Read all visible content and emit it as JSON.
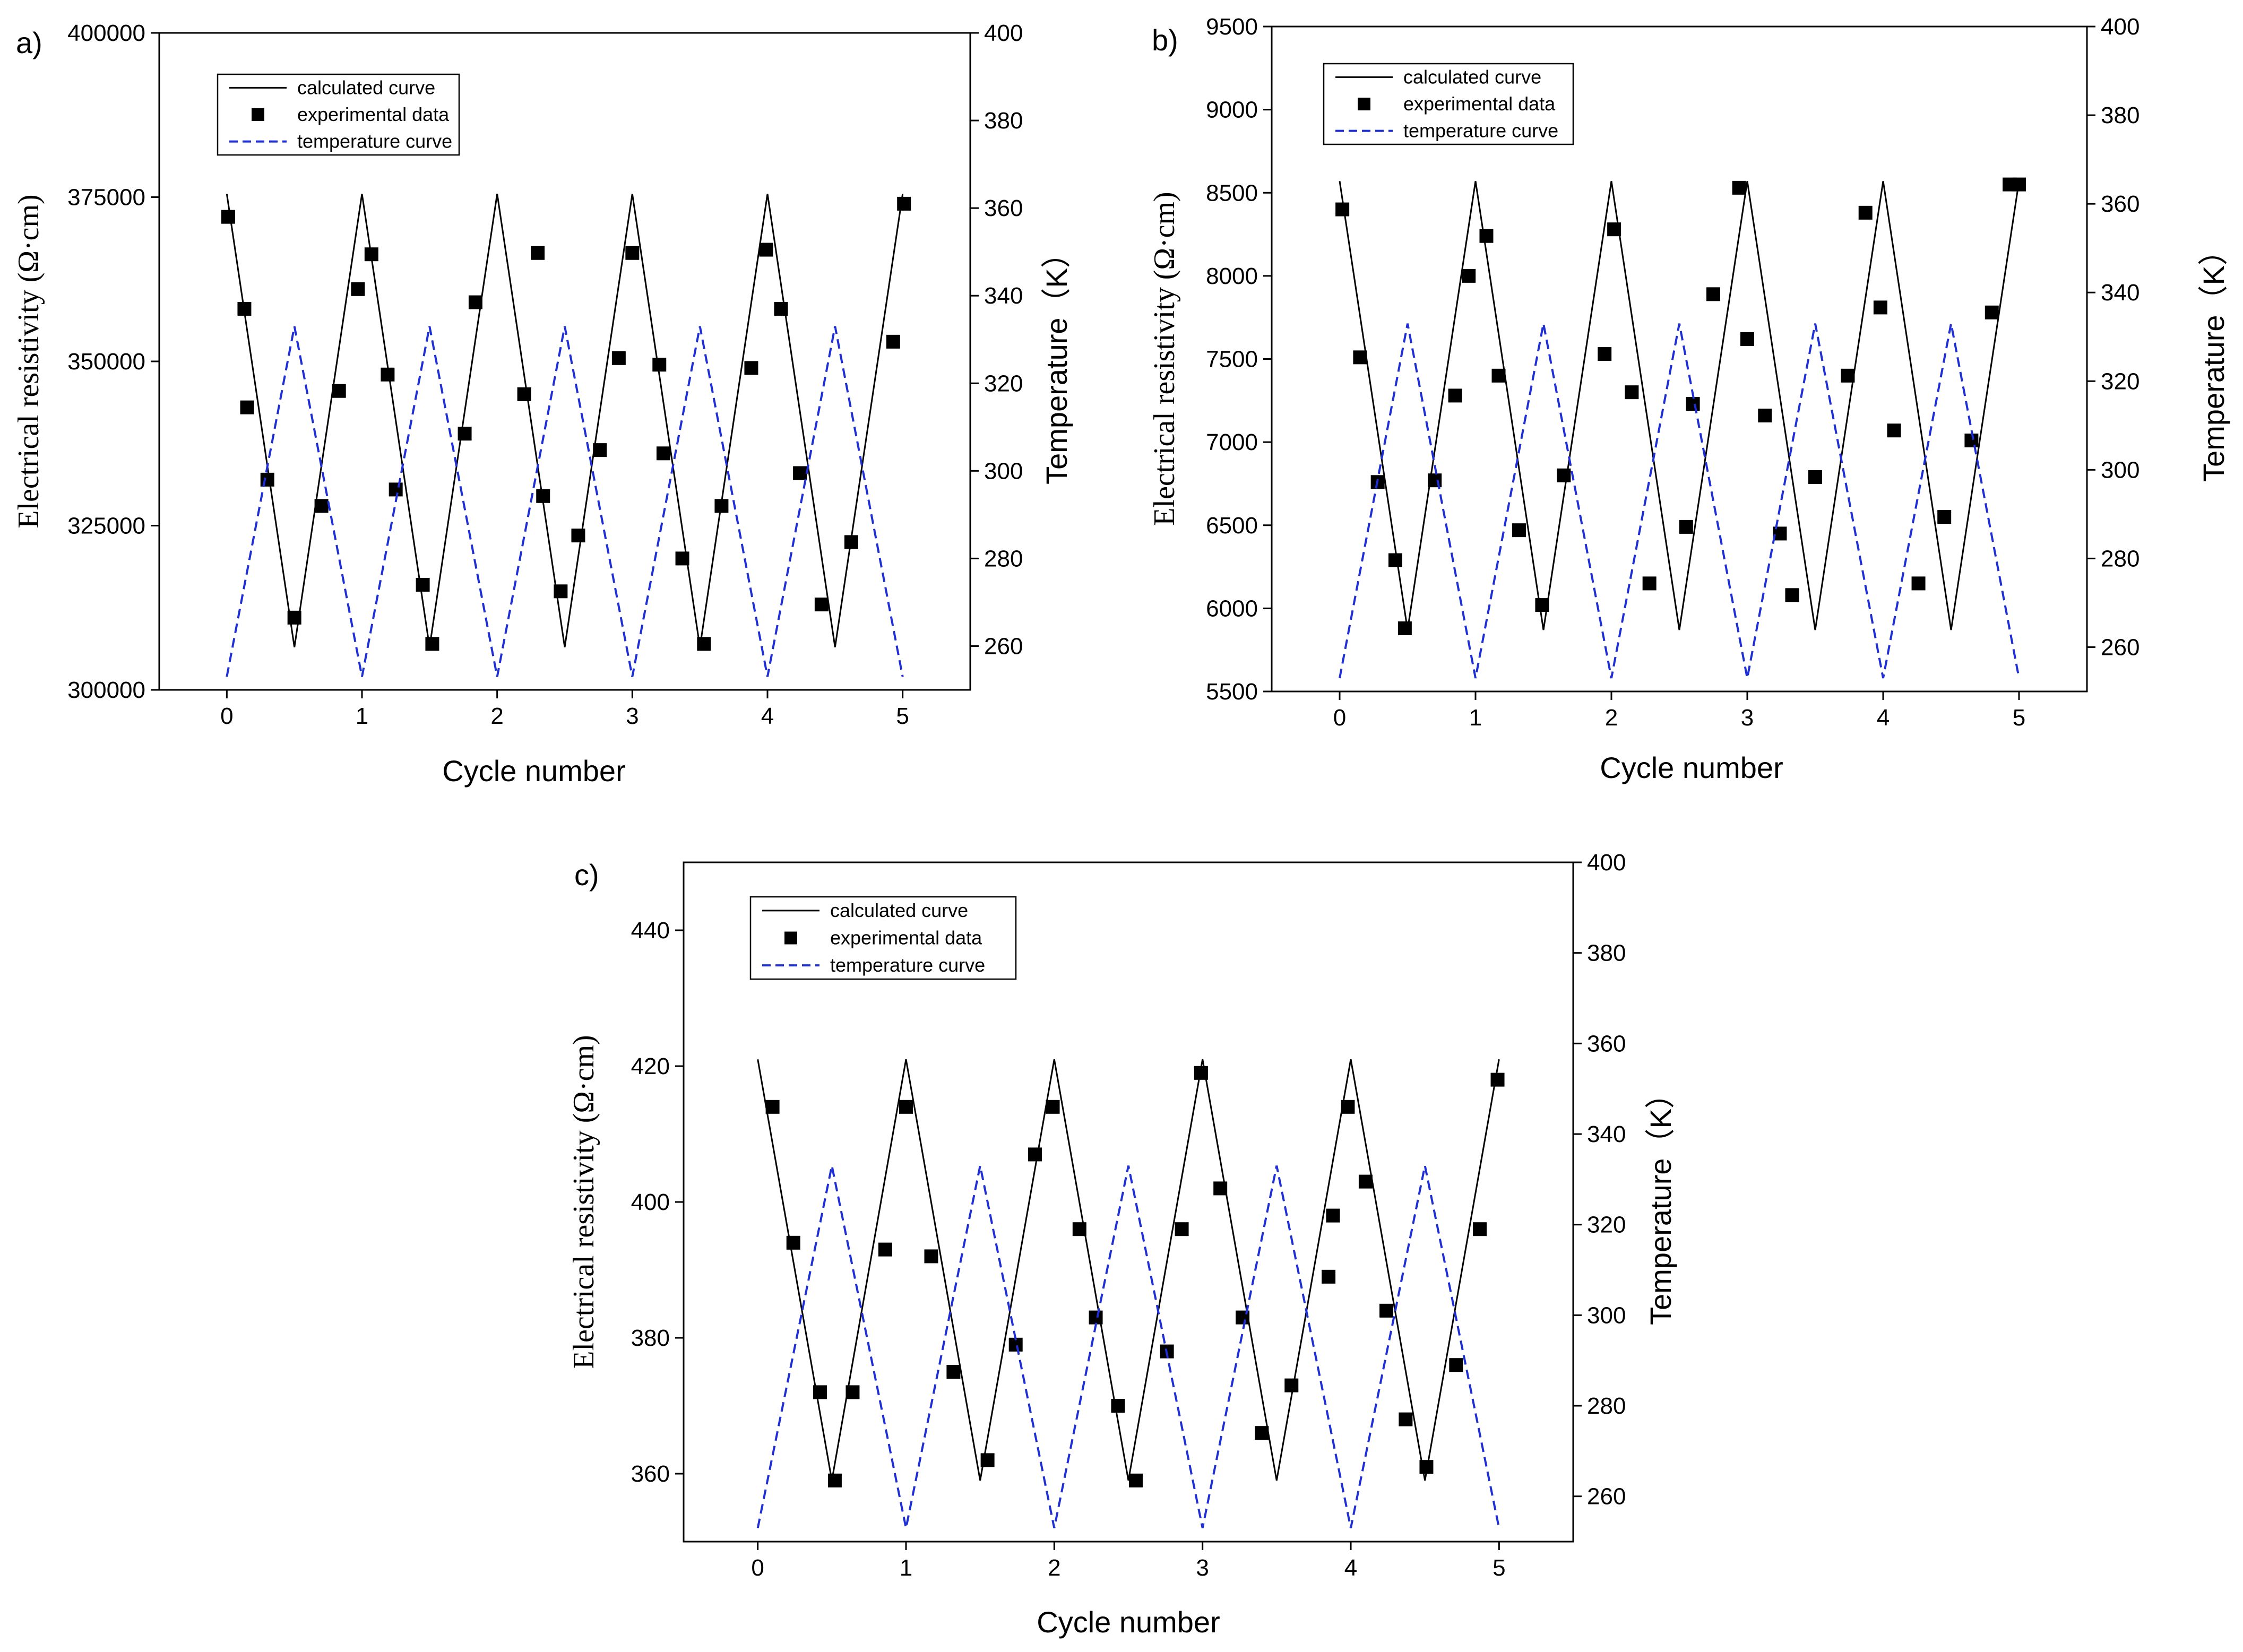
{
  "chart_data": [
    {
      "type": "line",
      "panel_label": "a)",
      "xlabel": "Cycle number",
      "ylabel": "Electrical resistivity (Ω·cm)",
      "y2label": "Temperature（K）",
      "xlim": [
        -0.5,
        5.5
      ],
      "ylim": [
        300000,
        400000
      ],
      "y2lim": [
        250,
        400
      ],
      "xticks": [
        0,
        1,
        2,
        3,
        4,
        5
      ],
      "yticks": [
        300000,
        325000,
        350000,
        375000,
        400000
      ],
      "y2ticks": [
        260,
        280,
        300,
        320,
        340,
        360,
        380,
        400
      ],
      "legend": {
        "position": "top-left",
        "entries": [
          "calculated curve",
          "experimental data",
          "temperature curve"
        ]
      },
      "series": [
        {
          "name": "calculated curve",
          "axis": "left",
          "style": "line",
          "color": "#000000",
          "x": [
            0,
            0.5,
            1,
            1.5,
            2,
            2.5,
            3,
            3.5,
            4,
            4.5,
            5
          ],
          "y": [
            375500,
            306500,
            375500,
            306500,
            375500,
            306500,
            375500,
            306500,
            375500,
            306500,
            375500
          ]
        },
        {
          "name": "experimental data",
          "axis": "left",
          "style": "markers",
          "color": "#000000",
          "x": [
            0.01,
            0.13,
            0.15,
            0.3,
            0.5,
            0.7,
            0.83,
            0.97,
            1.07,
            1.19,
            1.25,
            1.45,
            1.52,
            1.76,
            1.84,
            2.2,
            2.3,
            2.34,
            2.47,
            2.6,
            2.76,
            2.9,
            3.0,
            3.2,
            3.23,
            3.37,
            3.53,
            3.66,
            3.88,
            3.99,
            4.1,
            4.24,
            4.4,
            4.62,
            4.93,
            5.01
          ],
          "y": [
            372000,
            358000,
            343000,
            332000,
            311000,
            328000,
            345500,
            361000,
            366300,
            348000,
            330500,
            316000,
            307000,
            339000,
            359000,
            345000,
            366500,
            329500,
            315000,
            323500,
            336500,
            350500,
            366500,
            349500,
            336000,
            320000,
            307000,
            328000,
            349000,
            367000,
            358000,
            333000,
            313000,
            322500,
            353000,
            374000
          ]
        },
        {
          "name": "temperature curve",
          "axis": "right",
          "style": "dashed",
          "color": "#1f2fd6",
          "x": [
            0,
            0.5,
            1,
            1.5,
            2,
            2.5,
            3,
            3.5,
            4,
            4.5,
            5
          ],
          "y": [
            253,
            333,
            253,
            333,
            253,
            333,
            253,
            333,
            253,
            333,
            253
          ]
        }
      ]
    },
    {
      "type": "line",
      "panel_label": "b)",
      "xlabel": "Cycle number",
      "ylabel": "Electrical resistivity (Ω·cm)",
      "y2label": "Temperature（K）",
      "xlim": [
        -0.5,
        5.5
      ],
      "ylim": [
        5500,
        9500
      ],
      "y2lim": [
        250,
        400
      ],
      "xticks": [
        0,
        1,
        2,
        3,
        4,
        5
      ],
      "yticks": [
        5500,
        6000,
        6500,
        7000,
        7500,
        8000,
        8500,
        9000,
        9500
      ],
      "y2ticks": [
        260,
        280,
        300,
        320,
        340,
        360,
        380,
        400
      ],
      "legend": {
        "position": "top-left",
        "entries": [
          "calculated curve",
          "experimental data",
          "temperature curve"
        ]
      },
      "series": [
        {
          "name": "calculated curve",
          "axis": "left",
          "style": "line",
          "color": "#000000",
          "x": [
            0,
            0.5,
            1,
            1.5,
            2,
            2.5,
            3,
            3.5,
            4,
            4.5,
            5
          ],
          "y": [
            8570,
            5870,
            8570,
            5870,
            8570,
            5870,
            8570,
            5870,
            8570,
            5870,
            8570
          ]
        },
        {
          "name": "experimental data",
          "axis": "left",
          "style": "markers",
          "color": "#000000",
          "x": [
            0.02,
            0.15,
            0.28,
            0.41,
            0.48,
            0.7,
            0.85,
            0.95,
            1.08,
            1.17,
            1.32,
            1.49,
            1.65,
            1.95,
            2.02,
            2.15,
            2.28,
            2.55,
            2.6,
            2.75,
            2.94,
            3.0,
            3.13,
            3.24,
            3.33,
            3.5,
            3.74,
            3.87,
            3.98,
            4.08,
            4.26,
            4.45,
            4.65,
            4.8,
            4.93,
            5.0
          ],
          "y": [
            8400,
            7510,
            6760,
            6290,
            5880,
            6770,
            7280,
            8000,
            8240,
            7400,
            6470,
            6020,
            6800,
            7530,
            8280,
            7300,
            6150,
            6490,
            7230,
            7890,
            8530,
            7620,
            7160,
            6450,
            6080,
            6790,
            7400,
            8380,
            7810,
            7070,
            6150,
            6550,
            7010,
            7780,
            8550,
            8550
          ]
        },
        {
          "name": "temperature curve",
          "axis": "right",
          "style": "dashed",
          "color": "#1f2fd6",
          "x": [
            0,
            0.5,
            1,
            1.5,
            2,
            2.5,
            3,
            3.5,
            4,
            4.5,
            5
          ],
          "y": [
            253,
            333,
            253,
            333,
            253,
            333,
            253,
            333,
            253,
            333,
            253
          ]
        }
      ]
    },
    {
      "type": "line",
      "panel_label": "c)",
      "xlabel": "Cycle number",
      "ylabel": "Electrical resistivity (Ω·cm)",
      "y2label": "Temperature（K）",
      "xlim": [
        -0.5,
        5.5
      ],
      "ylim": [
        350,
        450
      ],
      "y2lim": [
        250,
        400
      ],
      "xticks": [
        0,
        1,
        2,
        3,
        4,
        5
      ],
      "yticks": [
        360,
        380,
        400,
        420,
        440
      ],
      "y2ticks": [
        260,
        280,
        300,
        320,
        340,
        360,
        380,
        400
      ],
      "legend": {
        "position": "top-left",
        "entries": [
          "calculated curve",
          "experimental data",
          "temperature curve"
        ]
      },
      "series": [
        {
          "name": "calculated curve",
          "axis": "left",
          "style": "line",
          "color": "#000000",
          "x": [
            0,
            0.5,
            1,
            1.5,
            2,
            2.5,
            3,
            3.5,
            4,
            4.5,
            5
          ],
          "y": [
            421,
            359,
            421,
            359,
            421,
            359,
            421,
            359,
            421,
            359,
            421
          ]
        },
        {
          "name": "experimental data",
          "axis": "left",
          "style": "markers",
          "color": "#000000",
          "x": [
            0.1,
            0.24,
            0.42,
            0.52,
            0.64,
            0.86,
            1.0,
            1.17,
            1.32,
            1.55,
            1.74,
            1.87,
            1.99,
            2.17,
            2.28,
            2.43,
            2.55,
            2.76,
            2.86,
            2.99,
            3.12,
            3.27,
            3.4,
            3.6,
            3.85,
            3.88,
            3.98,
            4.1,
            4.24,
            4.37,
            4.51,
            4.71,
            4.87,
            4.99
          ],
          "y": [
            414,
            394,
            372,
            359,
            372,
            393,
            414,
            392,
            375,
            362,
            379,
            407,
            414,
            396,
            383,
            370,
            359,
            378,
            396,
            419,
            402,
            383,
            366,
            373,
            389,
            398,
            414,
            403,
            384,
            368,
            361,
            376,
            396,
            418
          ]
        },
        {
          "name": "temperature curve",
          "axis": "right",
          "style": "dashed",
          "color": "#1f2fd6",
          "x": [
            0,
            0.5,
            1,
            1.5,
            2,
            2.5,
            3,
            3.5,
            4,
            4.5,
            5
          ],
          "y": [
            253,
            333,
            253,
            333,
            253,
            333,
            253,
            333,
            253,
            333,
            253
          ]
        }
      ]
    }
  ]
}
